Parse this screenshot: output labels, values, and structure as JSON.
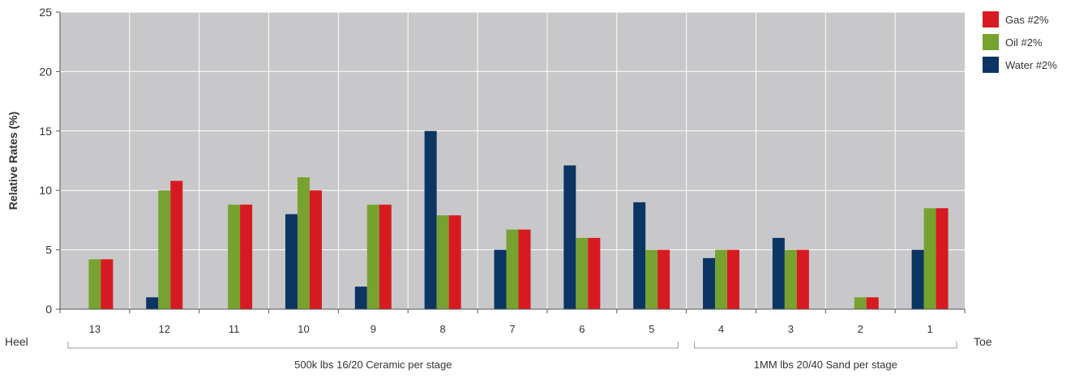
{
  "chart_data": {
    "type": "bar",
    "ylabel": "Relative Rates (%)",
    "ylim": [
      0,
      25
    ],
    "yticks": [
      0,
      5,
      10,
      15,
      20,
      25
    ],
    "categories": [
      "13",
      "12",
      "11",
      "10",
      "9",
      "8",
      "7",
      "6",
      "5",
      "4",
      "3",
      "2",
      "1"
    ],
    "series": [
      {
        "name": "Water #2%",
        "color": "#0b3563",
        "values": [
          0,
          1,
          0,
          8,
          1.9,
          15,
          5,
          12.1,
          9,
          4.3,
          6,
          0,
          5
        ]
      },
      {
        "name": "Oil #2%",
        "color": "#77a22f",
        "values": [
          4.2,
          10,
          8.8,
          11.1,
          8.8,
          7.9,
          6.7,
          6,
          5,
          5,
          5,
          1,
          8.5
        ]
      },
      {
        "name": "Gas #2%",
        "color": "#d71a21",
        "values": [
          4.2,
          10.8,
          8.8,
          10,
          8.8,
          7.9,
          6.7,
          6,
          5,
          5,
          5,
          1,
          8.5
        ]
      }
    ],
    "legend": {
      "placement": "top-right",
      "order": [
        "Gas #2%",
        "Oil #2%",
        "Water #2%"
      ]
    },
    "grid": true,
    "plot_background": "#c8c8ca",
    "x_end_labels": {
      "left": "Heel",
      "right": "Toe"
    },
    "groups": [
      {
        "label": "500k lbs 16/20 Ceramic per stage",
        "from": "13",
        "to": "5"
      },
      {
        "label": "1MM lbs 20/40 Sand per stage",
        "from": "4",
        "to": "1"
      }
    ]
  }
}
